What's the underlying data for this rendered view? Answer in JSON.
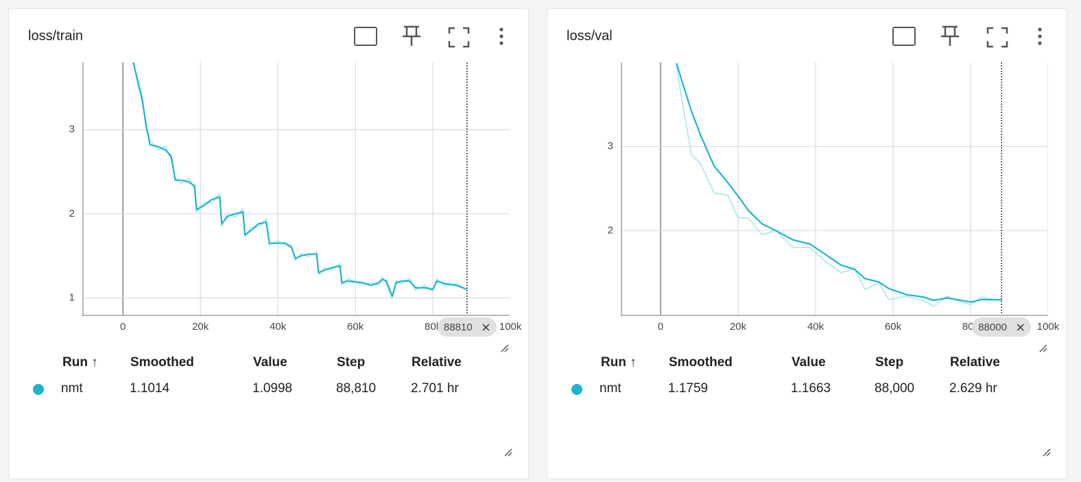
{
  "chart_data": [
    {
      "type": "line",
      "title": "loss/train",
      "x": [
        2650,
        4000,
        5000,
        6000,
        7000,
        9000,
        11000,
        12500,
        13500,
        15000,
        17000,
        18500,
        19000,
        21000,
        23000,
        25000,
        25500,
        27000,
        29000,
        31000,
        31500,
        33000,
        35000,
        37000,
        37800,
        40000,
        42000,
        43500,
        44500,
        46000,
        48000,
        50000,
        50500,
        52000,
        54000,
        56000,
        56500,
        58000,
        62000,
        64000,
        66000,
        67000,
        68000,
        69500,
        70500,
        72000,
        74000,
        75500,
        78000,
        80000,
        81000,
        83000,
        86000,
        88810
      ],
      "series": [
        {
          "name": "nmt",
          "color": "#1fb3c9",
          "values": [
            3.8,
            3.55,
            3.35,
            3.05,
            2.82,
            2.8,
            2.76,
            2.68,
            2.4,
            2.4,
            2.38,
            2.33,
            2.05,
            2.1,
            2.17,
            2.2,
            1.88,
            1.97,
            2.0,
            2.02,
            1.75,
            1.8,
            1.88,
            1.9,
            1.65,
            1.65,
            1.65,
            1.6,
            1.47,
            1.5,
            1.52,
            1.52,
            1.3,
            1.33,
            1.36,
            1.38,
            1.18,
            1.2,
            1.18,
            1.15,
            1.18,
            1.22,
            1.2,
            1.02,
            1.18,
            1.2,
            1.2,
            1.12,
            1.12,
            1.1,
            1.2,
            1.17,
            1.15,
            1.1014
          ]
        },
        {
          "color": "#b2ebf2",
          "values": [
            3.82,
            3.5,
            3.4,
            3.0,
            2.88,
            2.76,
            2.8,
            2.64,
            2.42,
            2.36,
            2.42,
            2.3,
            2.02,
            2.14,
            2.13,
            2.24,
            1.85,
            2.01,
            1.96,
            2.06,
            1.72,
            1.84,
            1.84,
            1.94,
            1.62,
            1.68,
            1.62,
            1.63,
            1.44,
            1.53,
            1.49,
            1.55,
            1.27,
            1.36,
            1.33,
            1.41,
            1.15,
            1.23,
            1.15,
            1.18,
            1.15,
            1.25,
            1.17,
            0.99,
            1.21,
            1.17,
            1.23,
            1.09,
            1.15,
            1.08,
            1.23,
            1.14,
            1.17,
            1.0998
          ]
        }
      ],
      "xlim": [
        -10300,
        99800
      ],
      "ylim": [
        0.8,
        3.8
      ],
      "xticks": [
        {
          "value": 0,
          "label": "0"
        },
        {
          "value": 20000,
          "label": "20k"
        },
        {
          "value": 40000,
          "label": "40k"
        },
        {
          "value": 60000,
          "label": "60k"
        },
        {
          "value": 80000,
          "label": "80k"
        },
        {
          "value": 100000,
          "label": "100k"
        }
      ],
      "yticks": [
        1,
        2,
        3
      ],
      "grid": true,
      "hover_label": 88810,
      "table": {
        "columns": [
          "Run ↑",
          "Smoothed",
          "Value",
          "Step",
          "Relative"
        ],
        "rows": [
          [
            "nmt",
            "1.1014",
            "1.0998",
            "88,810",
            "2.701 hr"
          ]
        ]
      }
    },
    {
      "type": "line",
      "title": "loss/val",
      "x": [
        4070,
        7960,
        10270,
        13800,
        17350,
        20000,
        22650,
        26200,
        29730,
        34160,
        38580,
        42120,
        46550,
        50090,
        52740,
        56280,
        58940,
        63360,
        67790,
        70440,
        73980,
        77520,
        80180,
        82830,
        88000
      ],
      "series": [
        {
          "name": "nmt",
          "color": "#1fb3c9",
          "values": [
            3.99,
            3.42,
            3.14,
            2.77,
            2.57,
            2.41,
            2.24,
            2.08,
            2.0,
            1.89,
            1.84,
            1.73,
            1.59,
            1.54,
            1.43,
            1.39,
            1.31,
            1.24,
            1.21,
            1.17,
            1.2,
            1.17,
            1.15,
            1.18,
            1.1759
          ]
        },
        {
          "color": "#b2ebf2",
          "values": [
            3.95,
            2.9,
            2.8,
            2.45,
            2.42,
            2.15,
            2.15,
            1.95,
            2.0,
            1.8,
            1.8,
            1.65,
            1.5,
            1.55,
            1.3,
            1.38,
            1.18,
            1.22,
            1.17,
            1.1,
            1.22,
            1.15,
            1.12,
            1.21,
            1.1663
          ]
        }
      ],
      "xlim": [
        -10100,
        100000
      ],
      "ylim": [
        1,
        4
      ],
      "xticks": [
        {
          "value": 0,
          "label": "0"
        },
        {
          "value": 20000,
          "label": "20k"
        },
        {
          "value": 40000,
          "label": "40k"
        },
        {
          "value": 60000,
          "label": "60k"
        },
        {
          "value": 80000,
          "label": "80k"
        },
        {
          "value": 100000,
          "label": "100k"
        }
      ],
      "yticks": [
        2,
        3
      ],
      "grid": true,
      "hover_label": 88000,
      "table": {
        "columns": [
          "Run ↑",
          "Smoothed",
          "Value",
          "Step",
          "Relative"
        ],
        "rows": [
          [
            "nmt",
            "1.1759",
            "1.1663",
            "88,000",
            "2.629 hr"
          ]
        ]
      }
    }
  ]
}
